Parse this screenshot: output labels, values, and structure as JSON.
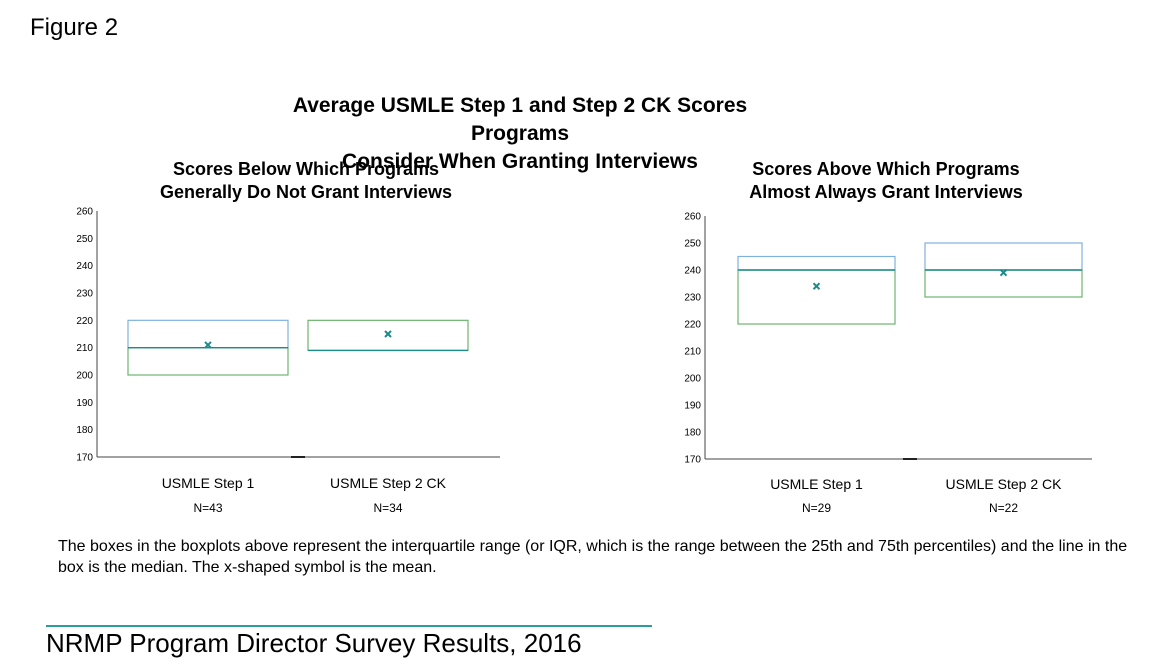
{
  "figure_label": "Figure 2",
  "caption": "The boxes in the boxplots above represent the interquartile range (or IQR, which is the range between the 25th and 75th percentiles) and the line in the box is the median. The x-shaped symbol is the mean.",
  "footer": "NRMP Program Director Survey Results, 2016",
  "colors": {
    "upper_box": "#7fb2e0",
    "lower_box": "#6db36d",
    "median": "#1f8a8a",
    "mean_marker": "#1f8a8a",
    "axis": "#444444",
    "footer_rule": "#2a9d9d"
  },
  "chart_data": {
    "type": "boxplot",
    "title_line1": "Average USMLE Step 1 and Step 2 CK Scores Programs",
    "title_line2": "Consider When Granting Interviews",
    "panels": [
      {
        "subtitle_line1": "Scores Below Which Programs",
        "subtitle_line2": "Generally Do Not Grant Interviews",
        "ylim": [
          170,
          260
        ],
        "yticks": [
          "170",
          "180",
          "190",
          "200",
          "210",
          "220",
          "230",
          "240",
          "250",
          "260"
        ],
        "boxes": [
          {
            "category": "USMLE Step 1",
            "n": "N=43",
            "q1": 200,
            "median": 210,
            "q3": 220,
            "mean": 211
          },
          {
            "category": "USMLE Step 2 CK",
            "n": "N=34",
            "q1": 209,
            "median": 209,
            "q3": 220,
            "mean": 215
          }
        ]
      },
      {
        "subtitle_line1": "Scores Above Which Programs",
        "subtitle_line2": "Almost Always Grant Interviews",
        "ylim": [
          170,
          260
        ],
        "yticks": [
          "170",
          "180",
          "190",
          "200",
          "210",
          "220",
          "230",
          "240",
          "250",
          "260"
        ],
        "boxes": [
          {
            "category": "USMLE Step 1",
            "n": "N=29",
            "q1": 220,
            "median": 240,
            "q3": 245,
            "mean": 234
          },
          {
            "category": "USMLE Step 2 CK",
            "n": "N=22",
            "q1": 230,
            "median": 240,
            "q3": 250,
            "mean": 239
          }
        ]
      }
    ]
  }
}
